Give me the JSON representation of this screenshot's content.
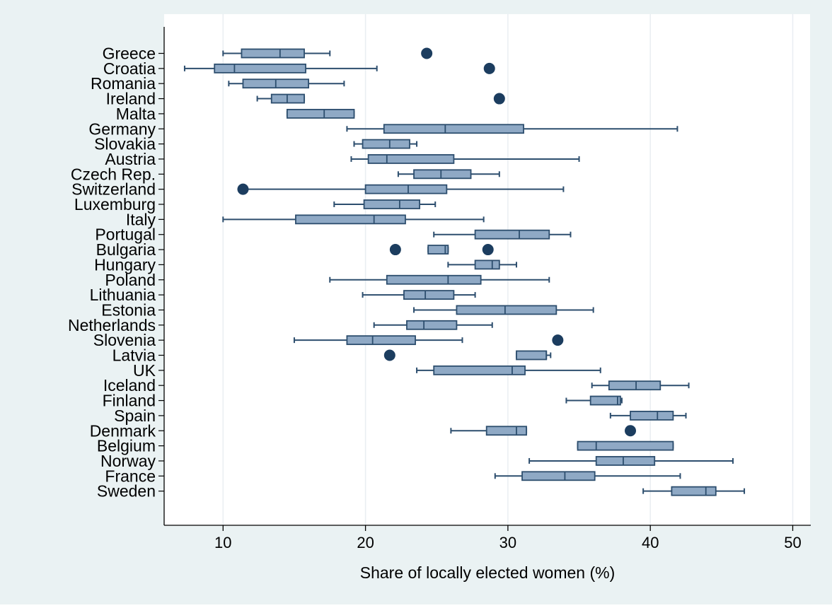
{
  "chart_data": {
    "type": "boxplot",
    "orientation": "horizontal",
    "xlabel": "Share of locally elected women (%)",
    "xlim": [
      6,
      51
    ],
    "xticks": [
      10,
      20,
      30,
      40,
      50
    ],
    "grid": "vertical",
    "colors": {
      "background": "#eaf2f3",
      "plot_area": "#ffffff",
      "box_fill": "#8fa9c5",
      "box_stroke": "#2d4e6e",
      "outlier": "#1c3d5f",
      "gridline": "#e9eef2",
      "axis": "#000000"
    },
    "categories": [
      {
        "label": "Greece",
        "whisker_lo": 10.0,
        "q1": 11.3,
        "median": 14.0,
        "q3": 15.7,
        "whisker_hi": 17.5,
        "outliers": [
          24.3
        ]
      },
      {
        "label": "Croatia",
        "whisker_lo": 7.3,
        "q1": 9.4,
        "median": 10.8,
        "q3": 15.8,
        "whisker_hi": 20.8,
        "outliers": [
          28.7
        ]
      },
      {
        "label": "Romania",
        "whisker_lo": 10.4,
        "q1": 11.4,
        "median": 13.7,
        "q3": 16.0,
        "whisker_hi": 18.5,
        "outliers": []
      },
      {
        "label": "Ireland",
        "whisker_lo": 12.4,
        "q1": 13.4,
        "median": 14.5,
        "q3": 15.7,
        "whisker_hi": 15.7,
        "outliers": [
          29.4
        ]
      },
      {
        "label": "Malta",
        "whisker_lo": 14.5,
        "q1": 14.5,
        "median": 17.1,
        "q3": 19.2,
        "whisker_hi": 19.2,
        "outliers": []
      },
      {
        "label": "Germany",
        "whisker_lo": 18.7,
        "q1": 21.3,
        "median": 25.6,
        "q3": 31.1,
        "whisker_hi": 41.9,
        "outliers": []
      },
      {
        "label": "Slovakia",
        "whisker_lo": 19.2,
        "q1": 19.8,
        "median": 21.7,
        "q3": 23.1,
        "whisker_hi": 23.6,
        "outliers": []
      },
      {
        "label": "Austria",
        "whisker_lo": 19.0,
        "q1": 20.2,
        "median": 21.5,
        "q3": 26.2,
        "whisker_hi": 35.0,
        "outliers": []
      },
      {
        "label": "Czech Rep.",
        "whisker_lo": 22.3,
        "q1": 23.4,
        "median": 25.3,
        "q3": 27.4,
        "whisker_hi": 29.4,
        "outliers": []
      },
      {
        "label": "Switzerland",
        "whisker_lo": 11.4,
        "q1": 20.0,
        "median": 23.0,
        "q3": 25.7,
        "whisker_hi": 33.9,
        "outliers": [
          11.4
        ]
      },
      {
        "label": "Luxemburg",
        "whisker_lo": 17.8,
        "q1": 19.9,
        "median": 22.4,
        "q3": 23.8,
        "whisker_hi": 24.9,
        "outliers": []
      },
      {
        "label": "Italy",
        "whisker_lo": 10.0,
        "q1": 15.1,
        "median": 20.6,
        "q3": 22.8,
        "whisker_hi": 28.3,
        "outliers": []
      },
      {
        "label": "Portugal",
        "whisker_lo": 24.8,
        "q1": 27.7,
        "median": 30.8,
        "q3": 32.9,
        "whisker_hi": 34.4,
        "outliers": []
      },
      {
        "label": "Bulgaria",
        "whisker_lo": 24.4,
        "q1": 24.4,
        "median": 25.6,
        "q3": 25.8,
        "whisker_hi": 25.8,
        "outliers": [
          22.1,
          28.6
        ]
      },
      {
        "label": "Hungary",
        "whisker_lo": 25.8,
        "q1": 27.7,
        "median": 28.9,
        "q3": 29.4,
        "whisker_hi": 30.6,
        "outliers": []
      },
      {
        "label": "Poland",
        "whisker_lo": 17.5,
        "q1": 21.5,
        "median": 25.8,
        "q3": 28.1,
        "whisker_hi": 32.9,
        "outliers": []
      },
      {
        "label": "Lithuania",
        "whisker_lo": 19.8,
        "q1": 22.7,
        "median": 24.2,
        "q3": 26.2,
        "whisker_hi": 27.7,
        "outliers": []
      },
      {
        "label": "Estonia",
        "whisker_lo": 23.4,
        "q1": 26.4,
        "median": 29.8,
        "q3": 33.4,
        "whisker_hi": 36.0,
        "outliers": []
      },
      {
        "label": "Netherlands",
        "whisker_lo": 20.6,
        "q1": 22.9,
        "median": 24.1,
        "q3": 26.4,
        "whisker_hi": 28.9,
        "outliers": []
      },
      {
        "label": "Slovenia",
        "whisker_lo": 15.0,
        "q1": 18.7,
        "median": 20.5,
        "q3": 23.5,
        "whisker_hi": 26.8,
        "outliers": [
          33.5
        ]
      },
      {
        "label": "Latvia",
        "whisker_lo": 30.6,
        "q1": 30.6,
        "median": 32.7,
        "q3": 32.7,
        "whisker_hi": 33.0,
        "outliers": [
          21.7
        ]
      },
      {
        "label": "UK",
        "whisker_lo": 23.6,
        "q1": 24.8,
        "median": 30.3,
        "q3": 31.2,
        "whisker_hi": 36.5,
        "outliers": []
      },
      {
        "label": "Iceland",
        "whisker_lo": 35.9,
        "q1": 37.1,
        "median": 39.0,
        "q3": 40.7,
        "whisker_hi": 42.7,
        "outliers": []
      },
      {
        "label": "Finland",
        "whisker_lo": 34.1,
        "q1": 35.8,
        "median": 37.7,
        "q3": 37.9,
        "whisker_hi": 38.0,
        "outliers": []
      },
      {
        "label": "Spain",
        "whisker_lo": 37.2,
        "q1": 38.6,
        "median": 40.5,
        "q3": 41.6,
        "whisker_hi": 42.5,
        "outliers": []
      },
      {
        "label": "Denmark",
        "whisker_lo": 26.0,
        "q1": 28.5,
        "median": 30.6,
        "q3": 31.3,
        "whisker_hi": 31.3,
        "outliers": [
          38.6
        ]
      },
      {
        "label": "Belgium",
        "whisker_lo": 34.9,
        "q1": 34.9,
        "median": 36.2,
        "q3": 41.6,
        "whisker_hi": 41.6,
        "outliers": []
      },
      {
        "label": "Norway",
        "whisker_lo": 31.5,
        "q1": 36.2,
        "median": 38.1,
        "q3": 40.3,
        "whisker_hi": 45.8,
        "outliers": []
      },
      {
        "label": "France",
        "whisker_lo": 29.1,
        "q1": 31.0,
        "median": 34.0,
        "q3": 36.1,
        "whisker_hi": 42.1,
        "outliers": []
      },
      {
        "label": "Sweden",
        "whisker_lo": 39.5,
        "q1": 41.5,
        "median": 43.9,
        "q3": 44.6,
        "whisker_hi": 46.6,
        "outliers": []
      }
    ]
  }
}
